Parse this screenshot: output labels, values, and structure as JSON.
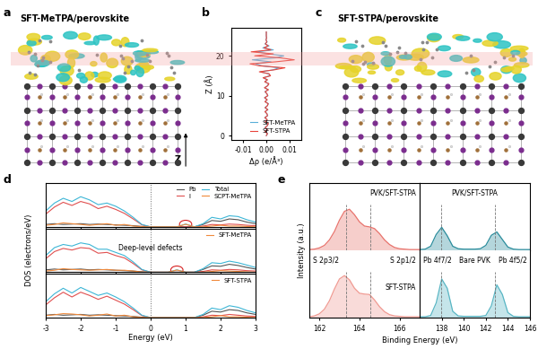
{
  "diagrams": [
    {
      "panel_label": "a",
      "title": "SFT-MeTPA/perovskite"
    },
    {
      "panel_label": "c",
      "title": "SFT-STPA/perovskite"
    }
  ],
  "axis_marker": "Z",
  "chart_data": [
    {
      "type": "line",
      "panel_label": "b",
      "xlabel": "Δρ (e/Å³)",
      "ylabel": "Z (Å)",
      "xlim": [
        -0.015,
        0.015
      ],
      "xticks": [
        -0.01,
        {
          "value": 0,
          "label": "0.00"
        },
        0.01
      ],
      "ylim": [
        -1,
        27
      ],
      "yticks": [
        0,
        10,
        20
      ],
      "legend": "lower right",
      "highlight": [
        17.5,
        21
      ],
      "z": [
        0,
        0.5,
        1,
        1.5,
        2,
        2.5,
        3,
        3.5,
        4,
        4.5,
        5,
        5.5,
        6,
        6.5,
        7,
        7.5,
        8,
        8.5,
        9,
        9.5,
        10,
        10.5,
        11,
        11.5,
        12,
        12.5,
        13,
        13.5,
        14,
        14.5,
        15,
        15.5,
        16,
        16.5,
        17,
        17.5,
        18,
        18.5,
        19,
        19.5,
        20,
        20.5,
        21,
        21.5,
        22,
        22.5,
        23,
        23.5,
        24,
        24.5,
        25,
        25.5,
        26
      ],
      "series": [
        {
          "name": "SFT-MeTPA",
          "color": "#5aaed8",
          "values": [
            0.0,
            0.0006,
            -0.0005,
            0.0004,
            -0.0006,
            0.0005,
            0.0008,
            -0.0004,
            0.0003,
            -0.0007,
            0.0006,
            0.0002,
            -0.0005,
            0.0007,
            -0.0006,
            0.0004,
            0.0009,
            -0.0005,
            0.0003,
            -0.0008,
            0.0007,
            0.0002,
            -0.0006,
            0.0008,
            -0.0007,
            0.0005,
            0.001,
            -0.0006,
            0.0004,
            -0.0012,
            0.0015,
            0.001,
            -0.0025,
            0.003,
            0.0055,
            -0.002,
            -0.0045,
            0.002,
            -0.006,
            0.004,
            0.0075,
            0.001,
            -0.004,
            0.003,
            -0.0015,
            0.0012,
            -0.0006,
            0.0004,
            -0.0002,
            0.0001,
            0.0,
            0.0,
            0.0
          ]
        },
        {
          "name": "SFT-STPA",
          "color": "#e8453c",
          "values": [
            0.0,
            0.0005,
            -0.0006,
            0.0005,
            -0.0005,
            0.0004,
            0.0009,
            -0.0005,
            0.0004,
            -0.0006,
            0.0005,
            0.0003,
            -0.0006,
            0.0006,
            -0.0005,
            0.0005,
            0.0008,
            -0.0006,
            0.0004,
            -0.0007,
            0.0006,
            0.0003,
            -0.0005,
            0.0009,
            -0.0008,
            0.0006,
            0.0011,
            -0.0007,
            0.0005,
            -0.0014,
            0.0018,
            0.0012,
            -0.003,
            0.0035,
            0.008,
            -0.003,
            -0.007,
            0.004,
            0.012,
            0.006,
            -0.005,
            0.003,
            -0.0065,
            0.002,
            -0.001,
            0.0008,
            -0.0004,
            0.0002,
            -0.0001,
            0.0001,
            0.0,
            0.0,
            0.0
          ]
        }
      ]
    },
    {
      "type": "line",
      "panel_label": "d",
      "xlabel": "Energy (eV)",
      "ylabel": "DOS (electrons/eV)",
      "x": [
        -3,
        -2.75,
        -2.5,
        -2.25,
        -2,
        -1.75,
        -1.5,
        -1.25,
        -1,
        -0.75,
        -0.5,
        -0.25,
        0,
        0.25,
        0.5,
        0.75,
        1,
        1.25,
        1.5,
        1.75,
        2,
        2.25,
        2.5,
        2.75,
        3
      ],
      "xlim": [
        -3,
        3
      ],
      "xticks": [
        -3,
        -2,
        -1,
        0,
        1,
        2,
        3
      ],
      "ylim": [
        0,
        5.5
      ],
      "yticks": [],
      "reference_line": 0,
      "panels": [
        {
          "legend": "upper right",
          "tick_labels": false,
          "defect_level": 1,
          "series": [
            {
              "name": "Pb",
              "color": "#555555",
              "values": [
                0.3,
                0.4,
                0.3,
                0.35,
                0.4,
                0.3,
                0.35,
                0.3,
                0.25,
                0.2,
                0.15,
                0.05,
                0,
                0,
                0,
                0,
                0,
                0,
                0.3,
                0.8,
                0.7,
                1.0,
                0.9,
                0.6,
                0.4
              ]
            },
            {
              "name": "I",
              "color": "#e05050",
              "values": [
                1.6,
                2.5,
                3.1,
                2.7,
                3.2,
                2.9,
                2.3,
                2.6,
                2.2,
                1.7,
                1.0,
                0.25,
                0,
                0,
                0,
                0,
                0,
                0,
                0.1,
                0.3,
                0.25,
                0.35,
                0.3,
                0.2,
                0.15
              ]
            },
            {
              "name": "Total",
              "color": "#3db6d6",
              "values": [
                2.0,
                3.0,
                3.6,
                3.2,
                3.8,
                3.4,
                2.8,
                3.0,
                2.6,
                2.0,
                1.2,
                0.3,
                0,
                0,
                0,
                0,
                0.35,
                0,
                0.4,
                1.2,
                1.0,
                1.4,
                1.3,
                0.9,
                0.6
              ]
            },
            {
              "name": "SCPT-MeTPA",
              "color": "#f08a3c",
              "molecule": true,
              "values": [
                0.2,
                0.3,
                0.5,
                0.4,
                0.3,
                0.2,
                0.3,
                0.4,
                0.2,
                0.3,
                0.1,
                0.02,
                0,
                0,
                0,
                0,
                0.33,
                0,
                0,
                0.1,
                0.2,
                0.1,
                0.1,
                0.05,
                0
              ]
            }
          ]
        },
        {
          "legend": "upper right",
          "tick_labels": false,
          "defect_level": 0.75,
          "annotation": "Deep-level defects",
          "series": [
            {
              "color": "#555555",
              "values": [
                0.3,
                0.4,
                0.3,
                0.35,
                0.4,
                0.3,
                0.35,
                0.3,
                0.25,
                0.2,
                0.15,
                0.05,
                0,
                0,
                0,
                0,
                0,
                0,
                0.35,
                0.8,
                0.75,
                1.0,
                0.85,
                0.6,
                0.4
              ]
            },
            {
              "color": "#e05050",
              "values": [
                1.7,
                2.6,
                3.0,
                2.8,
                3.1,
                3.0,
                2.4,
                2.5,
                2.1,
                1.8,
                1.1,
                0.3,
                0,
                0,
                0,
                0,
                0,
                0,
                0.1,
                0.3,
                0.25,
                0.35,
                0.3,
                0.2,
                0.15
              ]
            },
            {
              "color": "#3db6d6",
              "values": [
                2.1,
                3.1,
                3.5,
                3.3,
                3.7,
                3.5,
                2.9,
                2.9,
                2.5,
                2.1,
                1.3,
                0.35,
                0,
                0,
                0,
                0.3,
                0,
                0,
                0.45,
                1.2,
                1.1,
                1.4,
                1.2,
                0.9,
                0.6
              ]
            },
            {
              "name": "SFT-MeTPA",
              "color": "#f08a3c",
              "molecule": true,
              "values": [
                0.15,
                0.25,
                0.45,
                0.35,
                0.3,
                0.25,
                0.3,
                0.35,
                0.25,
                0.25,
                0.15,
                0.03,
                0,
                0,
                0,
                0.28,
                0,
                0,
                0,
                0.1,
                0.2,
                0.15,
                0.1,
                0.05,
                0
              ]
            }
          ]
        },
        {
          "legend": "upper right",
          "tick_labels": "x",
          "series": [
            {
              "color": "#555555",
              "values": [
                0.3,
                0.4,
                0.3,
                0.35,
                0.4,
                0.3,
                0.35,
                0.3,
                0.25,
                0.2,
                0.15,
                0.05,
                0,
                0,
                0,
                0,
                0,
                0,
                0.3,
                0.8,
                0.7,
                1.0,
                0.9,
                0.6,
                0.4
              ]
            },
            {
              "color": "#e05050",
              "values": [
                1.6,
                2.5,
                3.2,
                2.6,
                3.2,
                2.8,
                2.3,
                2.7,
                2.2,
                1.7,
                1.0,
                0.25,
                0,
                0,
                0,
                0,
                0,
                0,
                0.1,
                0.3,
                0.25,
                0.4,
                0.3,
                0.2,
                0.15
              ]
            },
            {
              "color": "#3db6d6",
              "values": [
                2.0,
                3.0,
                3.7,
                3.1,
                3.8,
                3.3,
                2.8,
                3.1,
                2.6,
                2.0,
                1.2,
                0.3,
                0,
                0,
                0,
                0,
                0,
                0,
                0.4,
                1.2,
                1.0,
                1.5,
                1.3,
                0.9,
                0.6
              ]
            },
            {
              "name": "SFT-STPA",
              "color": "#f08a3c",
              "molecule": true,
              "values": [
                0.25,
                0.35,
                0.5,
                0.45,
                0.35,
                0.2,
                0.3,
                0.45,
                0.2,
                0.3,
                0.1,
                0.02,
                0,
                0,
                0,
                0,
                0,
                0,
                0,
                0.1,
                0.25,
                0.1,
                0.1,
                0.05,
                0
              ]
            }
          ]
        }
      ]
    },
    {
      "type": "area",
      "panel_label": "e",
      "xlabel": "Binding Energy (eV)",
      "ylabel": "Intensity (a.u.)",
      "ylim": [
        0,
        1.6
      ],
      "yticks": [],
      "tick_labels": "x",
      "columns": [
        {
          "xlim": [
            161.5,
            167
          ],
          "xticks": [
            162,
            164,
            166
          ],
          "reference_lines": [
            163.35,
            164.55
          ],
          "peak_labels": [
            "S 2p3/2",
            "S 2p1/2"
          ],
          "x": [
            161.5,
            161.75,
            162.0,
            162.25,
            162.5,
            162.75,
            163.0,
            163.25,
            163.5,
            163.75,
            164.0,
            164.25,
            164.5,
            164.75,
            165.0,
            165.25,
            165.5,
            165.75,
            166.0,
            166.25,
            166.5,
            166.75,
            167.0
          ],
          "spectra": [
            {
              "name": "PVK/SFT-STPA",
              "color": "#e8736c",
              "values": [
                0.02,
                0.03,
                0.06,
                0.12,
                0.25,
                0.45,
                0.72,
                0.93,
                0.98,
                0.85,
                0.68,
                0.58,
                0.56,
                0.52,
                0.4,
                0.25,
                0.14,
                0.07,
                0.04,
                0.03,
                0.02,
                0.02,
                0.02
              ]
            },
            {
              "name": "SFT-STPA",
              "color": "#f09a92",
              "values": [
                0.02,
                0.04,
                0.09,
                0.2,
                0.4,
                0.68,
                0.92,
                1.0,
                0.9,
                0.7,
                0.58,
                0.56,
                0.55,
                0.42,
                0.26,
                0.14,
                0.07,
                0.04,
                0.03,
                0.02,
                0.02,
                0.02,
                0.02
              ]
            }
          ]
        },
        {
          "xlim": [
            136,
            146
          ],
          "xticks": [
            138,
            140,
            142,
            144,
            146
          ],
          "reference_lines": [
            137.95,
            142.85
          ],
          "peak_labels": [
            "Pb 4f7/2",
            "Pb 4f5/2"
          ],
          "x": [
            136,
            136.5,
            137,
            137.5,
            138,
            138.5,
            139,
            139.5,
            140,
            140.5,
            141,
            141.5,
            142,
            142.5,
            143,
            143.5,
            144,
            144.5,
            145,
            145.5,
            146
          ],
          "spectra": [
            {
              "name": "PVK/SFT-STPA",
              "color": "#2a8c9c",
              "values": [
                0.02,
                0.03,
                0.1,
                0.38,
                0.55,
                0.35,
                0.1,
                0.04,
                0.03,
                0.03,
                0.03,
                0.04,
                0.12,
                0.36,
                0.44,
                0.26,
                0.08,
                0.03,
                0.02,
                0.02,
                0.02
              ]
            },
            {
              "name": "Bare PVK",
              "color": "#59b6c4",
              "values": [
                0.02,
                0.02,
                0.05,
                0.35,
                0.92,
                0.7,
                0.15,
                0.04,
                0.03,
                0.03,
                0.03,
                0.03,
                0.05,
                0.28,
                0.78,
                0.55,
                0.12,
                0.03,
                0.02,
                0.02,
                0.02
              ]
            }
          ]
        }
      ]
    }
  ]
}
